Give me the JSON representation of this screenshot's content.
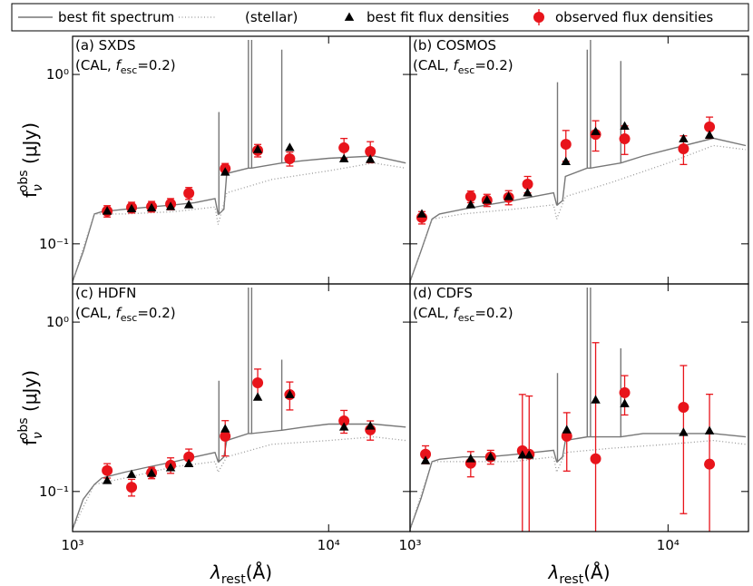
{
  "chart_data": [
    {
      "type": "sed",
      "title": "(a) SXDS",
      "subtitle": {
        "open": "(CAL, ",
        "f": "f",
        "sub": "esc",
        "close": "=0.2)"
      },
      "y_label": {
        "base": "f",
        "sub": "ν",
        "sup": "obs",
        "unit": " (μJy)"
      },
      "xlim": [
        1000,
        20800
      ],
      "ylim": [
        0.058,
        1.68
      ],
      "log": true,
      "xticks": [
        1000,
        10000
      ],
      "yticks": [
        {
          "value": 0.1,
          "label": "10⁻¹"
        },
        {
          "value": 1,
          "label": "10⁰"
        }
      ],
      "series": [
        {
          "name": "best fit spectrum",
          "color": "#777777",
          "x": [
            1000,
            1100,
            1216,
            1300,
            1600,
            2000,
            2500,
            3000,
            3600,
            3700,
            3727,
            3727,
            3727,
            3900,
            4000,
            4861,
            4861,
            4861,
            5007,
            5007,
            5007,
            6563,
            6563,
            6563,
            8000,
            10000,
            15000,
            20000
          ],
          "values": [
            0.06,
            0.09,
            0.15,
            0.155,
            0.16,
            0.165,
            0.17,
            0.175,
            0.185,
            0.15,
            0.15,
            0.6,
            0.15,
            0.16,
            0.26,
            0.28,
            1.6,
            0.28,
            0.28,
            1.6,
            0.28,
            0.3,
            1.4,
            0.3,
            0.31,
            0.32,
            0.33,
            0.3
          ]
        },
        {
          "name": "(stellar)",
          "color": "#999999",
          "x": [
            1000,
            1216,
            1600,
            2500,
            3600,
            3700,
            4000,
            6000,
            10000,
            15000,
            20000
          ],
          "values": [
            0.06,
            0.15,
            0.15,
            0.155,
            0.165,
            0.13,
            0.2,
            0.24,
            0.27,
            0.3,
            0.28
          ]
        },
        {
          "name": "best fit flux densities",
          "color": "#000000",
          "x": [
            1365,
            1700,
            2035,
            2415,
            2845,
            3945,
            5285,
            7050,
            11480,
            14550
          ],
          "values": [
            0.156,
            0.161,
            0.163,
            0.166,
            0.17,
            0.265,
            0.36,
            0.37,
            0.318,
            0.315
          ]
        },
        {
          "name": "observed flux densities",
          "color": "#e8141b",
          "x": [
            1365,
            1700,
            2035,
            2415,
            2845,
            3945,
            5285,
            7050,
            11480,
            14550
          ],
          "values": [
            0.156,
            0.164,
            0.166,
            0.172,
            0.199,
            0.278,
            0.356,
            0.318,
            0.369,
            0.351
          ],
          "errors": [
            0.012,
            0.012,
            0.012,
            0.013,
            0.016,
            0.02,
            0.03,
            0.03,
            0.05,
            0.05
          ]
        }
      ]
    },
    {
      "type": "sed",
      "title": "(b) COSMOS",
      "subtitle": {
        "open": "(CAL, ",
        "f": "f",
        "sub": "esc",
        "close": "=0.2)"
      },
      "xlim": [
        1000,
        20500
      ],
      "ylim": [
        0.058,
        1.68
      ],
      "log": true,
      "xticks": [
        1000,
        10000
      ],
      "yticks": [
        0.1,
        1
      ],
      "series": [
        {
          "color": "#777777",
          "x": [
            1000,
            1100,
            1216,
            1300,
            1600,
            2000,
            2500,
            3000,
            3600,
            3700,
            3727,
            3727,
            3727,
            3900,
            4000,
            4861,
            4861,
            4861,
            5007,
            5007,
            5007,
            6563,
            6563,
            6563,
            8000,
            10000,
            15000,
            20000
          ],
          "values": [
            0.06,
            0.09,
            0.14,
            0.15,
            0.16,
            0.17,
            0.18,
            0.19,
            0.2,
            0.17,
            0.17,
            0.9,
            0.17,
            0.18,
            0.25,
            0.28,
            1.4,
            0.28,
            0.28,
            1.6,
            0.28,
            0.3,
            1.2,
            0.3,
            0.33,
            0.36,
            0.42,
            0.38
          ]
        },
        {
          "color": "#999999",
          "x": [
            1000,
            1216,
            1600,
            2500,
            3600,
            3700,
            4000,
            6000,
            10000,
            15000,
            20000
          ],
          "values": [
            0.06,
            0.14,
            0.15,
            0.16,
            0.17,
            0.14,
            0.19,
            0.23,
            0.3,
            0.38,
            0.36
          ]
        },
        {
          "color": "#000000",
          "x": [
            1111,
            1718,
            1987,
            2410,
            2855,
            4018,
            5240,
            6790,
            11480,
            14480
          ],
          "values": [
            0.15,
            0.17,
            0.181,
            0.19,
            0.2,
            0.306,
            0.46,
            0.495,
            0.417,
            0.438
          ]
        },
        {
          "color": "#e8141b",
          "x": [
            1111,
            1718,
            1987,
            2410,
            2855,
            4018,
            5240,
            6790,
            11480,
            14480
          ],
          "values": [
            0.143,
            0.19,
            0.181,
            0.188,
            0.225,
            0.387,
            0.443,
            0.417,
            0.364,
            0.49
          ],
          "errors": [
            0.012,
            0.015,
            0.015,
            0.018,
            0.025,
            0.08,
            0.09,
            0.08,
            0.07,
            0.07
          ]
        }
      ]
    },
    {
      "type": "sed",
      "title": "(c) HDFN",
      "subtitle": {
        "open": "(CAL, ",
        "f": "f",
        "sub": "esc",
        "close": "=0.2)"
      },
      "y_label": {
        "base": "f",
        "sub": "ν",
        "sup": "obs",
        "unit": " (μJy)"
      },
      "x_label": {
        "base": "λ",
        "sub": "rest",
        "unit": "(Å)"
      },
      "xlim": [
        1000,
        20800
      ],
      "ylim": [
        0.058,
        1.68
      ],
      "log": true,
      "xticks": [
        {
          "value": 1000,
          "label": "10³"
        },
        {
          "value": 10000,
          "label": "10⁴"
        }
      ],
      "yticks": [
        {
          "value": 0.1,
          "label": "10⁻¹"
        },
        {
          "value": 1,
          "label": "10⁰"
        }
      ],
      "series": [
        {
          "color": "#777777",
          "x": [
            1000,
            1100,
            1216,
            1300,
            1600,
            2000,
            2500,
            3000,
            3600,
            3700,
            3727,
            3727,
            3727,
            3900,
            4000,
            4861,
            4861,
            4861,
            5007,
            5007,
            5007,
            6563,
            6563,
            6563,
            8000,
            10000,
            15000,
            20000
          ],
          "values": [
            0.06,
            0.09,
            0.11,
            0.12,
            0.13,
            0.14,
            0.15,
            0.16,
            0.17,
            0.15,
            0.15,
            0.45,
            0.15,
            0.16,
            0.2,
            0.22,
            1.6,
            0.22,
            0.22,
            1.6,
            0.22,
            0.23,
            0.6,
            0.23,
            0.24,
            0.25,
            0.25,
            0.24
          ]
        },
        {
          "color": "#999999",
          "x": [
            1000,
            1216,
            1600,
            2500,
            3600,
            3700,
            4000,
            6000,
            10000,
            15000,
            20000
          ],
          "values": [
            0.06,
            0.11,
            0.12,
            0.14,
            0.15,
            0.13,
            0.16,
            0.19,
            0.2,
            0.21,
            0.2
          ]
        },
        {
          "color": "#000000",
          "x": [
            1365,
            1700,
            2035,
            2415,
            2845,
            3945,
            5285,
            7050,
            11480,
            14550
          ],
          "values": [
            0.116,
            0.126,
            0.128,
            0.138,
            0.146,
            0.234,
            0.36,
            0.373,
            0.24,
            0.243
          ]
        },
        {
          "color": "#e8141b",
          "x": [
            1365,
            1700,
            2035,
            2415,
            2845,
            3945,
            5285,
            7050,
            11480,
            14550
          ],
          "values": [
            0.133,
            0.106,
            0.129,
            0.143,
            0.16,
            0.212,
            0.438,
            0.373,
            0.261,
            0.231
          ],
          "errors": [
            0.013,
            0.012,
            0.01,
            0.015,
            0.018,
            0.05,
            0.09,
            0.07,
            0.04,
            0.03
          ]
        }
      ]
    },
    {
      "type": "sed",
      "title": "(d) CDFS",
      "subtitle": {
        "open": "(CAL, ",
        "f": "f",
        "sub": "esc",
        "close": "=0.2)"
      },
      "x_label": {
        "base": "λ",
        "sub": "rest",
        "unit": "(Å)"
      },
      "xlim": [
        1000,
        20500
      ],
      "ylim": [
        0.058,
        1.68
      ],
      "log": true,
      "xticks": [
        {
          "value": 1000,
          "label": "10³"
        },
        {
          "value": 10000,
          "label": "10⁴"
        }
      ],
      "yticks": [
        0.1,
        1
      ],
      "series": [
        {
          "color": "#777777",
          "x": [
            1000,
            1100,
            1216,
            1300,
            1600,
            2000,
            2500,
            3000,
            3600,
            3700,
            3727,
            3727,
            3727,
            3900,
            4000,
            4861,
            4861,
            4861,
            5007,
            5007,
            5007,
            6563,
            6563,
            6563,
            8000,
            10000,
            15000,
            20000
          ],
          "values": [
            0.06,
            0.09,
            0.15,
            0.155,
            0.16,
            0.16,
            0.165,
            0.17,
            0.175,
            0.15,
            0.15,
            0.5,
            0.15,
            0.16,
            0.2,
            0.21,
            1.6,
            0.21,
            0.21,
            1.6,
            0.21,
            0.21,
            0.7,
            0.21,
            0.22,
            0.22,
            0.22,
            0.21
          ]
        },
        {
          "color": "#999999",
          "x": [
            1000,
            1216,
            1600,
            2500,
            3600,
            3700,
            4000,
            6000,
            10000,
            15000,
            20000
          ],
          "values": [
            0.06,
            0.15,
            0.15,
            0.15,
            0.16,
            0.13,
            0.17,
            0.18,
            0.19,
            0.2,
            0.19
          ]
        },
        {
          "color": "#000000",
          "x": [
            1148,
            1718,
            2052,
            2725,
            2895,
            4050,
            5240,
            6790,
            11480,
            14480
          ],
          "values": [
            0.152,
            0.156,
            0.16,
            0.164,
            0.164,
            0.231,
            0.347,
            0.33,
            0.223,
            0.228
          ]
        },
        {
          "color": "#e8141b",
          "x": [
            1148,
            1718,
            2052,
            2725,
            2895,
            4050,
            5240,
            6790,
            11480,
            14480
          ],
          "values": [
            0.166,
            0.147,
            0.16,
            0.174,
            0.166,
            0.212,
            0.156,
            0.383,
            0.314,
            0.145
          ],
          "errors": [
            0.02,
            0.025,
            0.015,
            0.2,
            0.2,
            0.08,
            0.6,
            0.1,
            0.24,
            0.23
          ]
        }
      ]
    }
  ]
}
